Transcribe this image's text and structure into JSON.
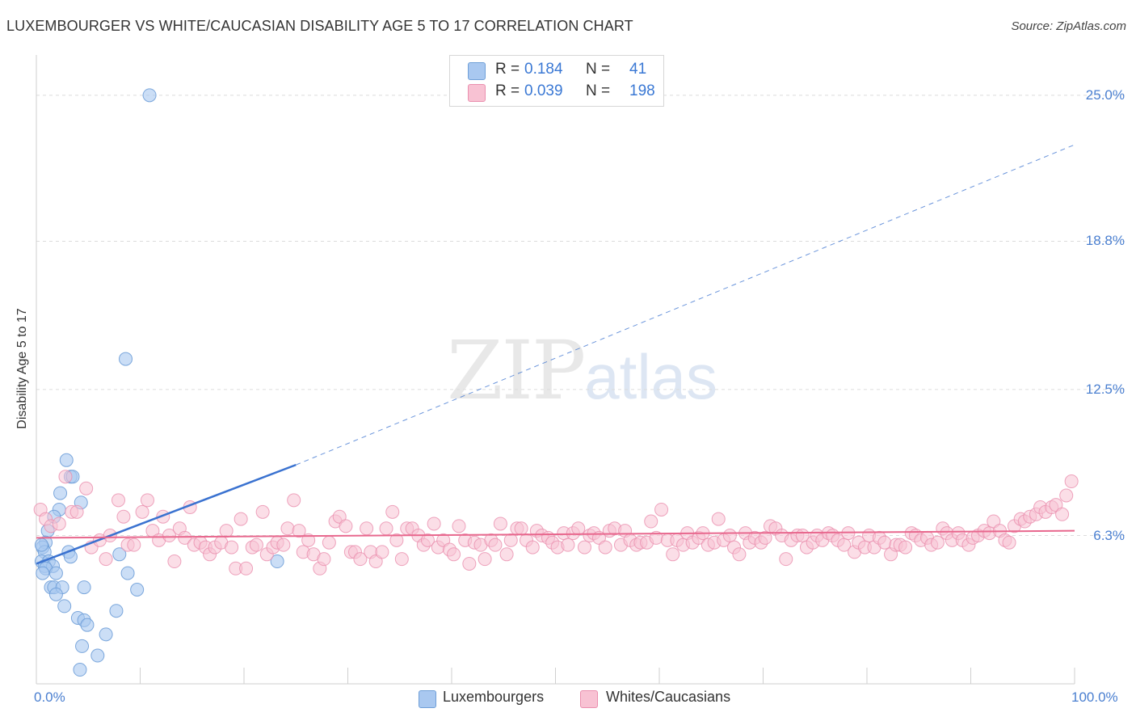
{
  "header": {
    "title": "LUXEMBOURGER VS WHITE/CAUCASIAN DISABILITY AGE 5 TO 17 CORRELATION CHART",
    "source": "Source: ZipAtlas.com"
  },
  "watermark": {
    "zip": "ZIP",
    "atlas": "atlas"
  },
  "legend": {
    "rows": [
      {
        "r_label": "R =",
        "r_value": "0.184",
        "n_label": "N =",
        "n_value": "41",
        "color": "#a9c8f0",
        "border": "#6f9fd8"
      },
      {
        "r_label": "R =",
        "r_value": "0.039",
        "n_label": "N =",
        "n_value": "198",
        "color": "#f8c2d3",
        "border": "#ea8fae"
      }
    ],
    "bottom": [
      {
        "label": "Luxembourgers",
        "color": "#a9c8f0",
        "border": "#6f9fd8"
      },
      {
        "label": "Whites/Caucasians",
        "color": "#f8c2d3",
        "border": "#ea8fae"
      }
    ]
  },
  "chart_data": {
    "type": "scatter",
    "title": "LUXEMBOURGER VS WHITE/CAUCASIAN DISABILITY AGE 5 TO 17 CORRELATION CHART",
    "xlabel": "",
    "ylabel": "Disability Age 5 to 17",
    "xlim": [
      0,
      100
    ],
    "ylim": [
      0,
      26.3
    ],
    "x_tick_labels": [
      "0.0%",
      "100.0%"
    ],
    "y_ticks": [
      6.3,
      12.5,
      18.8,
      25.0
    ],
    "y_tick_labels": [
      "6.3%",
      "12.5%",
      "18.8%",
      "25.0%"
    ],
    "grid": true,
    "series": [
      {
        "name": "Luxembourgers",
        "color": "#a9c8f0",
        "edge": "#6f9fd8",
        "trend": {
          "x0": 0,
          "y0": 5.1,
          "x1": 25,
          "y1": 9.3,
          "dash_to_x": 100,
          "dash_to_y": 22.9,
          "color": "#3a72d0"
        },
        "points": [
          [
            10.9,
            25.0
          ],
          [
            8.6,
            13.8
          ],
          [
            2.9,
            9.5
          ],
          [
            3.3,
            8.8
          ],
          [
            3.5,
            8.8
          ],
          [
            2.3,
            8.1
          ],
          [
            4.3,
            7.7
          ],
          [
            2.2,
            7.4
          ],
          [
            1.7,
            7.1
          ],
          [
            1.1,
            6.5
          ],
          [
            0.9,
            6.0
          ],
          [
            0.6,
            5.8
          ],
          [
            0.8,
            5.6
          ],
          [
            3.1,
            5.6
          ],
          [
            3.3,
            5.4
          ],
          [
            8.0,
            5.5
          ],
          [
            0.5,
            5.2
          ],
          [
            1.2,
            5.2
          ],
          [
            0.8,
            5.0
          ],
          [
            1.6,
            5.0
          ],
          [
            0.9,
            4.9
          ],
          [
            0.6,
            4.7
          ],
          [
            1.9,
            4.7
          ],
          [
            8.8,
            4.7
          ],
          [
            23.2,
            5.2
          ],
          [
            1.4,
            4.1
          ],
          [
            1.7,
            4.1
          ],
          [
            2.5,
            4.1
          ],
          [
            4.6,
            4.1
          ],
          [
            9.7,
            4.0
          ],
          [
            1.9,
            3.8
          ],
          [
            2.7,
            3.3
          ],
          [
            7.7,
            3.1
          ],
          [
            4.0,
            2.8
          ],
          [
            4.6,
            2.7
          ],
          [
            4.9,
            2.5
          ],
          [
            6.7,
            2.1
          ],
          [
            4.4,
            1.6
          ],
          [
            5.9,
            1.2
          ],
          [
            4.2,
            0.6
          ],
          [
            0.5,
            5.9
          ]
        ]
      },
      {
        "name": "Whites/Caucasians",
        "color": "#f8c2d3",
        "edge": "#ea8fae",
        "trend": {
          "x0": 0,
          "y0": 6.2,
          "x1": 100,
          "y1": 6.5,
          "color": "#e8688e"
        },
        "points": [
          [
            0.4,
            7.4
          ],
          [
            0.9,
            7.0
          ],
          [
            1.4,
            6.7
          ],
          [
            2.2,
            6.8
          ],
          [
            2.8,
            8.8
          ],
          [
            3.4,
            7.3
          ],
          [
            3.9,
            7.3
          ],
          [
            4.8,
            8.3
          ],
          [
            5.3,
            5.8
          ],
          [
            6.1,
            6.1
          ],
          [
            6.7,
            5.3
          ],
          [
            7.1,
            6.3
          ],
          [
            7.9,
            7.8
          ],
          [
            8.4,
            7.1
          ],
          [
            8.8,
            5.9
          ],
          [
            9.4,
            5.9
          ],
          [
            10.2,
            7.3
          ],
          [
            10.7,
            7.8
          ],
          [
            11.2,
            6.5
          ],
          [
            11.8,
            6.1
          ],
          [
            12.2,
            7.1
          ],
          [
            12.8,
            6.3
          ],
          [
            13.3,
            5.2
          ],
          [
            13.8,
            6.6
          ],
          [
            14.3,
            6.2
          ],
          [
            14.8,
            7.5
          ],
          [
            15.2,
            5.9
          ],
          [
            15.8,
            6.0
          ],
          [
            16.3,
            5.8
          ],
          [
            16.7,
            5.5
          ],
          [
            17.2,
            5.8
          ],
          [
            17.8,
            6.0
          ],
          [
            18.3,
            6.5
          ],
          [
            18.8,
            5.8
          ],
          [
            19.2,
            4.9
          ],
          [
            19.7,
            7.0
          ],
          [
            20.2,
            4.9
          ],
          [
            20.8,
            5.8
          ],
          [
            21.2,
            5.9
          ],
          [
            21.8,
            7.3
          ],
          [
            22.2,
            5.5
          ],
          [
            22.8,
            5.8
          ],
          [
            23.2,
            6.0
          ],
          [
            23.8,
            5.9
          ],
          [
            24.2,
            6.6
          ],
          [
            24.8,
            7.8
          ],
          [
            25.3,
            6.5
          ],
          [
            25.7,
            5.6
          ],
          [
            26.2,
            6.1
          ],
          [
            26.7,
            5.5
          ],
          [
            27.3,
            4.9
          ],
          [
            27.7,
            5.3
          ],
          [
            28.2,
            6.0
          ],
          [
            28.8,
            6.9
          ],
          [
            29.2,
            7.1
          ],
          [
            29.8,
            6.7
          ],
          [
            30.3,
            5.6
          ],
          [
            30.7,
            5.6
          ],
          [
            31.2,
            5.3
          ],
          [
            31.8,
            6.6
          ],
          [
            32.2,
            5.6
          ],
          [
            32.7,
            5.2
          ],
          [
            33.3,
            5.6
          ],
          [
            33.7,
            6.6
          ],
          [
            34.3,
            7.3
          ],
          [
            34.7,
            6.1
          ],
          [
            35.2,
            5.3
          ],
          [
            35.7,
            6.6
          ],
          [
            36.2,
            6.6
          ],
          [
            36.8,
            6.3
          ],
          [
            37.3,
            5.9
          ],
          [
            37.7,
            6.1
          ],
          [
            38.3,
            6.8
          ],
          [
            38.7,
            5.8
          ],
          [
            39.2,
            6.1
          ],
          [
            39.8,
            5.7
          ],
          [
            40.2,
            5.5
          ],
          [
            40.7,
            6.7
          ],
          [
            41.3,
            6.1
          ],
          [
            41.7,
            5.1
          ],
          [
            42.2,
            6.0
          ],
          [
            42.8,
            5.9
          ],
          [
            43.2,
            5.3
          ],
          [
            43.8,
            6.1
          ],
          [
            44.2,
            5.9
          ],
          [
            44.7,
            6.8
          ],
          [
            45.3,
            5.5
          ],
          [
            45.7,
            6.1
          ],
          [
            46.3,
            6.6
          ],
          [
            46.7,
            6.6
          ],
          [
            47.2,
            6.1
          ],
          [
            47.8,
            5.8
          ],
          [
            48.2,
            6.5
          ],
          [
            48.7,
            6.3
          ],
          [
            49.3,
            6.2
          ],
          [
            49.7,
            6.0
          ],
          [
            50.2,
            5.8
          ],
          [
            50.8,
            6.4
          ],
          [
            51.2,
            5.9
          ],
          [
            51.7,
            6.4
          ],
          [
            52.2,
            6.6
          ],
          [
            52.8,
            5.8
          ],
          [
            53.3,
            6.3
          ],
          [
            53.7,
            6.4
          ],
          [
            54.2,
            6.2
          ],
          [
            54.8,
            5.8
          ],
          [
            55.2,
            6.5
          ],
          [
            55.7,
            6.6
          ],
          [
            56.3,
            5.9
          ],
          [
            56.7,
            6.5
          ],
          [
            57.2,
            6.1
          ],
          [
            57.8,
            5.9
          ],
          [
            58.2,
            6.0
          ],
          [
            58.8,
            6.0
          ],
          [
            59.2,
            6.9
          ],
          [
            59.7,
            6.2
          ],
          [
            60.2,
            7.4
          ],
          [
            60.8,
            6.1
          ],
          [
            61.3,
            5.5
          ],
          [
            61.7,
            6.1
          ],
          [
            62.3,
            5.9
          ],
          [
            62.7,
            6.4
          ],
          [
            63.2,
            6.0
          ],
          [
            63.8,
            6.2
          ],
          [
            64.2,
            6.4
          ],
          [
            64.7,
            5.9
          ],
          [
            65.3,
            6.0
          ],
          [
            65.7,
            7.0
          ],
          [
            66.2,
            6.1
          ],
          [
            66.8,
            6.3
          ],
          [
            67.2,
            5.8
          ],
          [
            67.7,
            5.5
          ],
          [
            68.3,
            6.4
          ],
          [
            68.7,
            6.0
          ],
          [
            69.2,
            6.2
          ],
          [
            69.8,
            6.0
          ],
          [
            70.2,
            6.2
          ],
          [
            70.7,
            6.7
          ],
          [
            71.2,
            6.6
          ],
          [
            71.8,
            6.3
          ],
          [
            72.2,
            5.3
          ],
          [
            72.7,
            6.1
          ],
          [
            73.3,
            6.3
          ],
          [
            73.8,
            6.3
          ],
          [
            74.2,
            5.8
          ],
          [
            74.8,
            6.0
          ],
          [
            75.2,
            6.3
          ],
          [
            75.7,
            6.1
          ],
          [
            76.3,
            6.4
          ],
          [
            76.7,
            6.3
          ],
          [
            77.2,
            6.1
          ],
          [
            77.8,
            5.9
          ],
          [
            78.2,
            6.4
          ],
          [
            78.8,
            5.6
          ],
          [
            79.2,
            6.0
          ],
          [
            79.8,
            5.8
          ],
          [
            80.2,
            6.3
          ],
          [
            80.7,
            5.8
          ],
          [
            81.2,
            6.2
          ],
          [
            81.7,
            6.0
          ],
          [
            82.3,
            5.5
          ],
          [
            82.8,
            5.9
          ],
          [
            83.2,
            5.9
          ],
          [
            83.7,
            5.8
          ],
          [
            84.3,
            6.4
          ],
          [
            84.7,
            6.3
          ],
          [
            85.2,
            6.1
          ],
          [
            85.8,
            6.2
          ],
          [
            86.2,
            5.9
          ],
          [
            86.8,
            6.0
          ],
          [
            87.3,
            6.6
          ],
          [
            87.7,
            6.4
          ],
          [
            88.2,
            6.1
          ],
          [
            88.8,
            6.4
          ],
          [
            89.2,
            6.1
          ],
          [
            89.8,
            5.9
          ],
          [
            90.2,
            6.2
          ],
          [
            90.7,
            6.3
          ],
          [
            91.3,
            6.5
          ],
          [
            91.8,
            6.4
          ],
          [
            92.2,
            6.9
          ],
          [
            92.8,
            6.5
          ],
          [
            93.3,
            6.1
          ],
          [
            93.7,
            6.0
          ],
          [
            94.2,
            6.7
          ],
          [
            94.8,
            7.0
          ],
          [
            95.2,
            6.9
          ],
          [
            95.7,
            7.1
          ],
          [
            96.3,
            7.2
          ],
          [
            96.7,
            7.5
          ],
          [
            97.2,
            7.3
          ],
          [
            97.8,
            7.5
          ],
          [
            98.2,
            7.6
          ],
          [
            98.8,
            7.2
          ],
          [
            99.2,
            8.0
          ],
          [
            99.7,
            8.6
          ]
        ]
      }
    ]
  }
}
